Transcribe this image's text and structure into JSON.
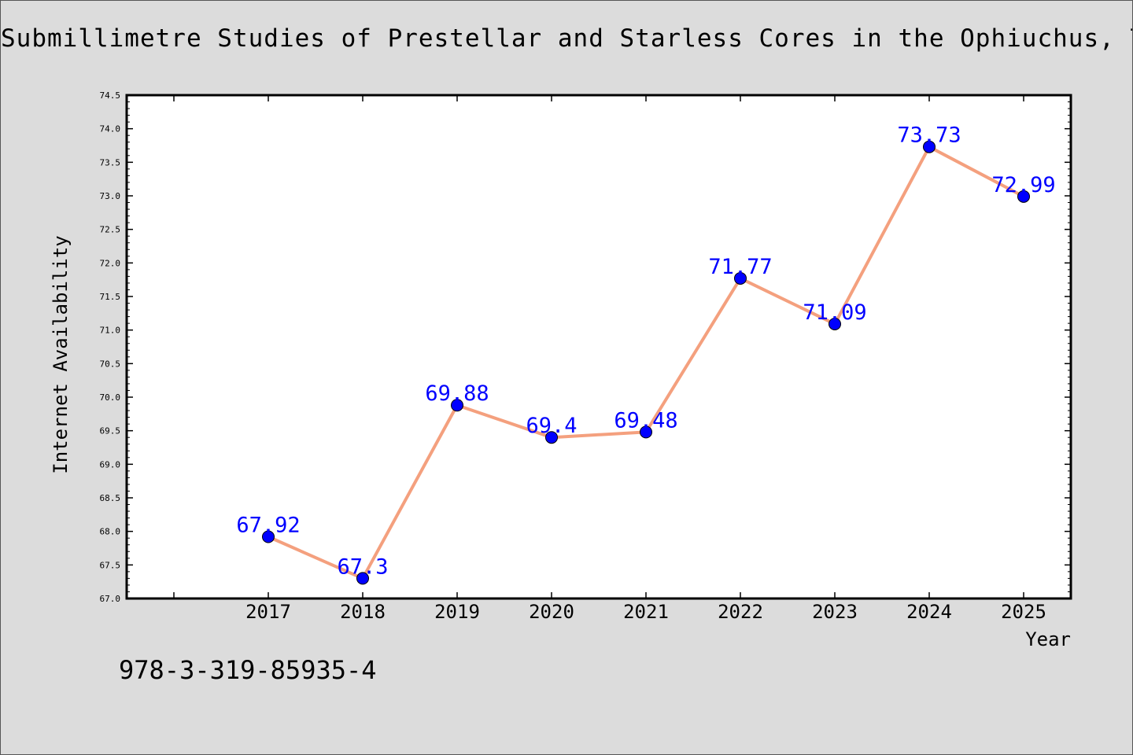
{
  "chart_data": {
    "type": "line",
    "title": "Submillimetre Studies of Prestellar and Starless Cores in the Ophiuchus, Taurus",
    "xlabel": "Year",
    "ylabel": "Internet Availability",
    "categories": [
      "2017",
      "2018",
      "2019",
      "2020",
      "2021",
      "2022",
      "2023",
      "2024",
      "2025"
    ],
    "series": [
      {
        "values": [
          67.92,
          67.3,
          69.88,
          69.4,
          69.48,
          71.77,
          71.09,
          73.73,
          72.99
        ],
        "labels": [
          "67.92",
          "67.3",
          "69.88",
          "69.4",
          "69.48",
          "71.77",
          "71.09",
          "73.73",
          "72.99"
        ]
      }
    ],
    "ylim": [
      67.0,
      74.5
    ],
    "yticks": [
      "67.0",
      "67.5",
      "68.0",
      "68.5",
      "69.0",
      "69.5",
      "70.0",
      "70.5",
      "71.0",
      "71.5",
      "72.0",
      "72.5",
      "73.0",
      "73.5",
      "74.0",
      "74.5"
    ],
    "grid": false,
    "legend": "none",
    "colors": {
      "line": "#f4a07e",
      "marker": "#0000ff",
      "label": "#0000ff",
      "background": "#dcdcdc",
      "plot_background": "#ffffff"
    }
  },
  "footer": {
    "isbn": "978-3-319-85935-4"
  }
}
